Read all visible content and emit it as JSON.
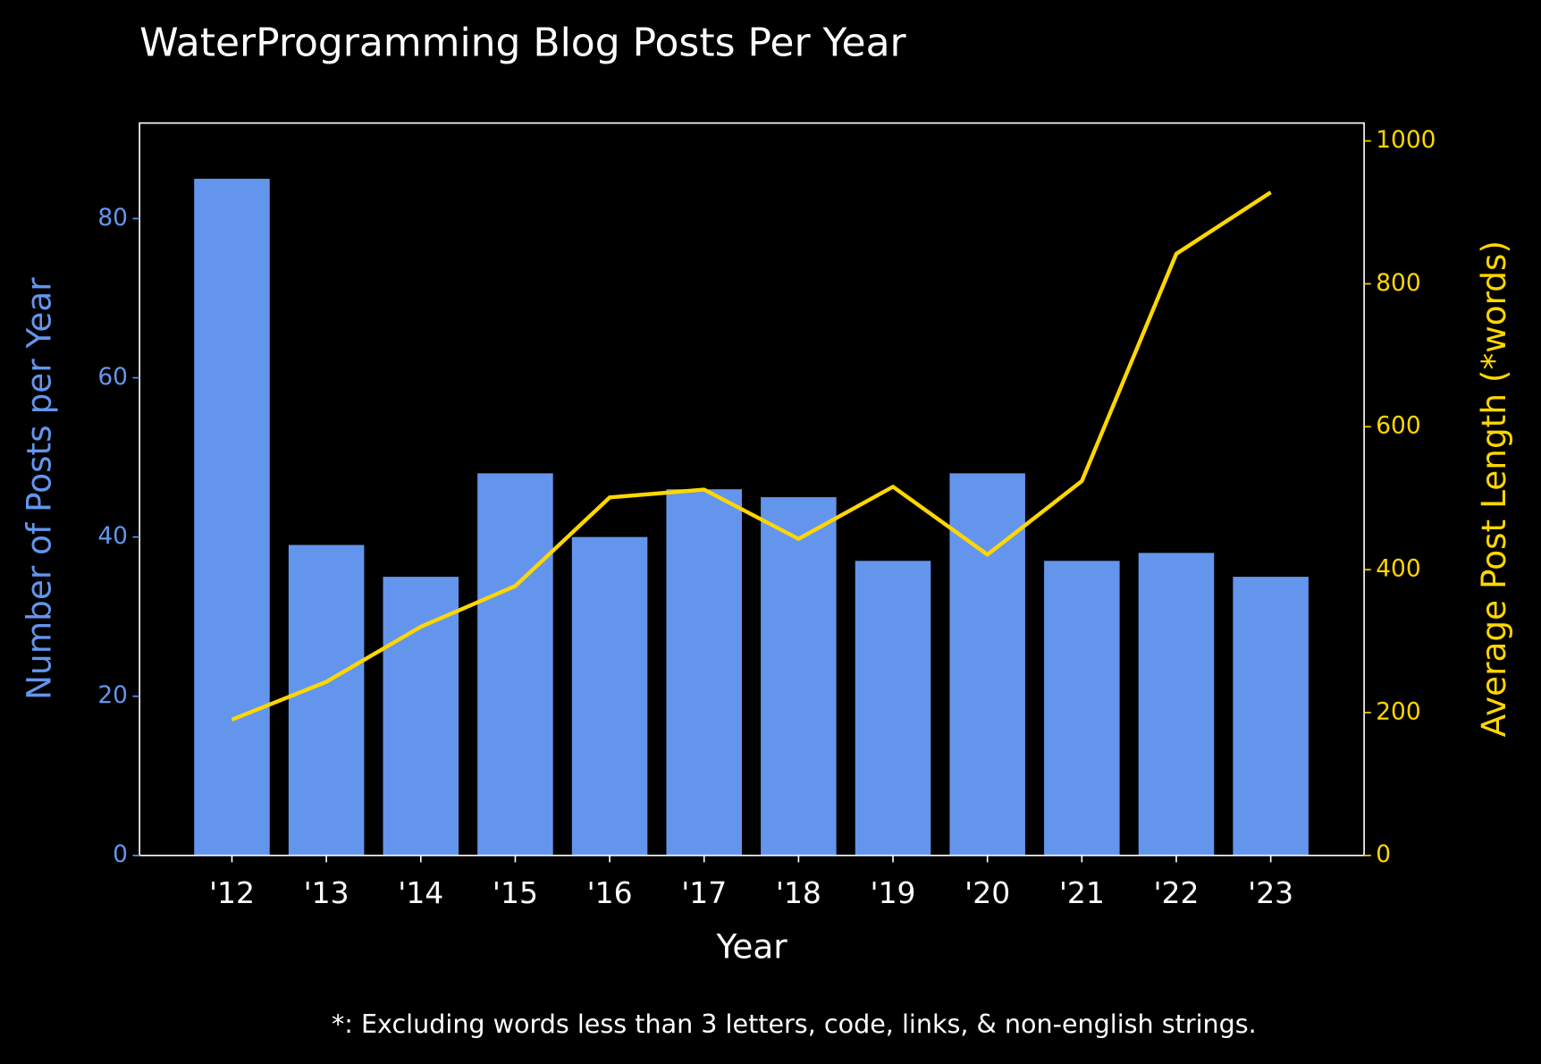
{
  "chart_data": {
    "type": "bar",
    "title": "WaterProgramming Blog Posts Per Year",
    "x_label": "Year",
    "y_label": "Number of Posts per Year",
    "y2_label": "Average Post Length (*words)",
    "footnote": "*: Excluding words less than 3 letters, code, links, & non-english strings.",
    "categories": [
      "'12",
      "'13",
      "'14",
      "'15",
      "'16",
      "'17",
      "'18",
      "'19",
      "'20",
      "'21",
      "'22",
      "'23"
    ],
    "series": [
      {
        "type": "bar",
        "color": "#6495ed",
        "values": [
          85,
          39,
          35,
          48,
          40,
          46,
          45,
          37,
          48,
          37,
          38,
          35
        ]
      },
      {
        "type": "line",
        "axis": "y2",
        "color": "#ffd700",
        "values": [
          190,
          243,
          320,
          377,
          501,
          512,
          443,
          516,
          421,
          524,
          842,
          928
        ]
      }
    ],
    "ylim": [
      0,
      92
    ],
    "yticks": [
      0,
      20,
      40,
      60,
      80
    ],
    "y2lim": [
      0,
      1025
    ],
    "y2ticks": [
      0,
      200,
      400,
      600,
      800,
      1000
    ],
    "background": "#000000"
  }
}
